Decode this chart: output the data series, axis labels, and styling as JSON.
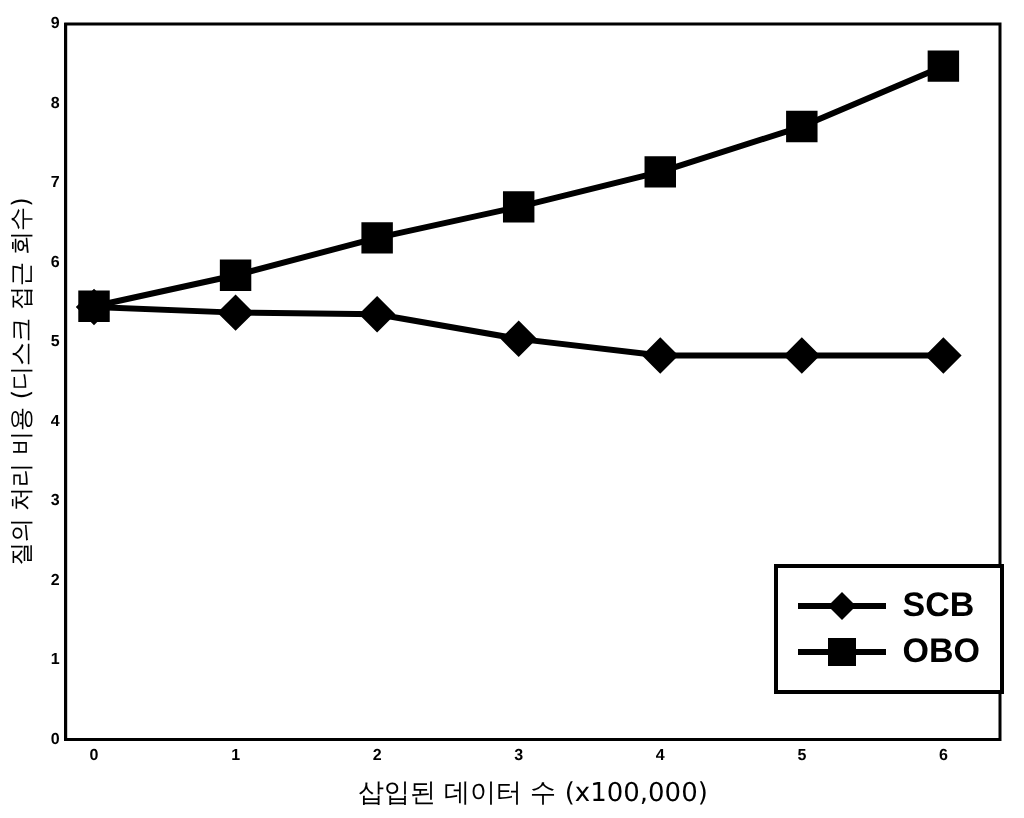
{
  "chart_data": {
    "type": "line",
    "xlabel": "삽입된 데이터 수 (x100,000)",
    "ylabel": "질의 처리 비용 (디스크 접근 회수)",
    "x": [
      0,
      1,
      2,
      3,
      4,
      5,
      6
    ],
    "series": [
      {
        "name": "SCB",
        "color": "#000000",
        "marker": "diamond",
        "values": [
          5.44,
          5.37,
          5.35,
          5.04,
          4.83,
          4.83,
          4.83
        ]
      },
      {
        "name": "OBO",
        "color": "#000000",
        "marker": "square",
        "values": [
          5.45,
          5.84,
          6.31,
          6.7,
          7.14,
          7.71,
          8.47
        ]
      }
    ],
    "xlim": [
      -0.2,
      6.4
    ],
    "xticks": [
      0,
      1,
      2,
      3,
      4,
      5,
      6
    ],
    "ylim": [
      0,
      9
    ],
    "yticks": [
      0,
      1,
      2,
      3,
      4,
      5,
      6,
      7,
      8,
      9
    ],
    "grid": false,
    "legend": "bottom right"
  }
}
